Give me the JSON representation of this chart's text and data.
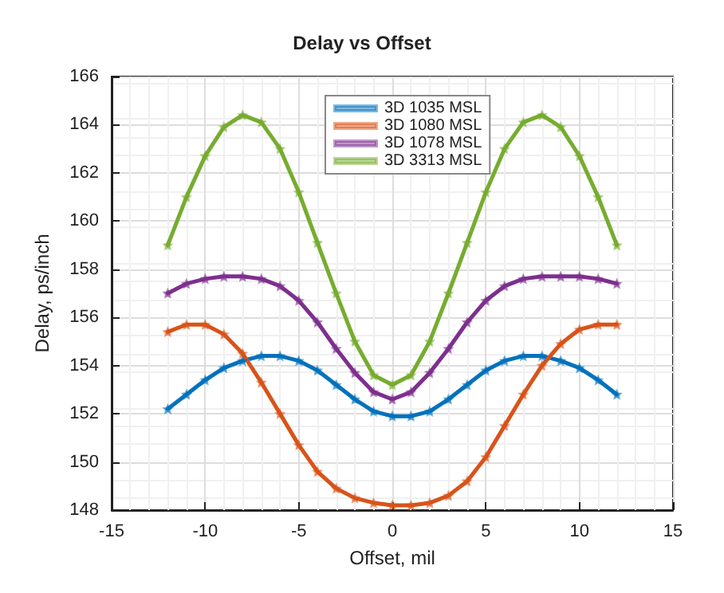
{
  "chart_data": {
    "type": "line",
    "title": "Delay vs Offset",
    "xlabel": "Offset, mil",
    "ylabel": "Delay, ps/inch",
    "x": [
      -12,
      -11,
      -10,
      -9,
      -8,
      -7,
      -6,
      -5,
      -4,
      -3,
      -2,
      -1,
      0,
      1,
      2,
      3,
      4,
      5,
      6,
      7,
      8,
      9,
      10,
      11,
      12
    ],
    "series": [
      {
        "name": "3D 1035 MSL",
        "color": "#0072bd",
        "values": [
          152.2,
          152.8,
          153.4,
          153.9,
          154.2,
          154.4,
          154.4,
          154.2,
          153.8,
          153.2,
          152.6,
          152.1,
          151.9,
          151.9,
          152.1,
          152.6,
          153.2,
          153.8,
          154.2,
          154.4,
          154.4,
          154.2,
          153.9,
          153.4,
          152.8
        ]
      },
      {
        "name": "3D 1080 MSL",
        "color": "#d95319",
        "values": [
          155.4,
          155.7,
          155.7,
          155.3,
          154.5,
          153.3,
          152.0,
          150.7,
          149.6,
          148.9,
          148.5,
          148.3,
          148.2,
          148.2,
          148.3,
          148.6,
          149.2,
          150.2,
          151.5,
          152.8,
          154.0,
          154.9,
          155.5,
          155.7,
          155.7
        ]
      },
      {
        "name": "3D 1078 MSL",
        "color": "#7e2f8e",
        "values": [
          157.0,
          157.4,
          157.6,
          157.7,
          157.7,
          157.6,
          157.3,
          156.7,
          155.8,
          154.7,
          153.7,
          152.9,
          152.6,
          152.9,
          153.7,
          154.7,
          155.8,
          156.7,
          157.3,
          157.6,
          157.7,
          157.7,
          157.7,
          157.6,
          157.4
        ]
      },
      {
        "name": "3D 3313 MSL",
        "color": "#77ac30",
        "values": [
          159.0,
          161.0,
          162.7,
          163.9,
          164.4,
          164.1,
          163.0,
          161.2,
          159.1,
          157.0,
          155.0,
          153.6,
          153.2,
          153.6,
          155.0,
          157.0,
          159.1,
          161.2,
          163.0,
          164.1,
          164.4,
          163.9,
          162.7,
          161.0,
          159.0
        ]
      }
    ],
    "xlim": [
      -15,
      15
    ],
    "xticks": [
      -15,
      -10,
      -5,
      0,
      5,
      10,
      15
    ],
    "ylim": [
      148,
      166
    ],
    "yticks": [
      148,
      150,
      152,
      154,
      156,
      158,
      160,
      162,
      164,
      166
    ],
    "grid": true,
    "legend": "top",
    "marker": "star",
    "line_style": "solid"
  }
}
